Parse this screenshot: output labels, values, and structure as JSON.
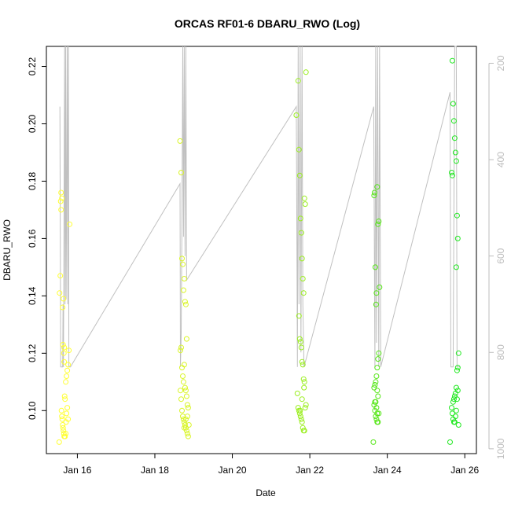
{
  "chart_data": {
    "type": "scatter",
    "title": "ORCAS RF01-6 DBARU_RWO (Log)",
    "xlabel": "Date",
    "ylabel": "DBARU_RWO",
    "x_ticks": [
      "Jan 16",
      "Jan 18",
      "Jan 20",
      "Jan 22",
      "Jan 24",
      "Jan 26"
    ],
    "x_tick_values": [
      16,
      18,
      20,
      22,
      24,
      26
    ],
    "xlim": [
      15.2,
      26.3
    ],
    "ylim": [
      0.085,
      0.227
    ],
    "y_ticks": [
      0.1,
      0.12,
      0.14,
      0.16,
      0.18,
      0.2,
      0.22
    ],
    "y_tick_labels": [
      "0.10",
      "0.12",
      "0.14",
      "0.16",
      "0.18",
      "0.20",
      "0.22"
    ],
    "right_axis": {
      "ticks": [
        200,
        400,
        600,
        800,
        1000
      ],
      "tick_labels": [
        "200",
        "400",
        "600",
        "800",
        "1000"
      ],
      "range_top_to_bottom": [
        165,
        1010
      ],
      "color": "#bdbdbd"
    },
    "grid": false,
    "colors": {
      "line": "#c0c0c0",
      "flight_1": "#ffff33",
      "flight_2": "#d9f526",
      "flight_3": "#9aee1e",
      "flight_4": "#55e616",
      "flight_5": "#1fe81f"
    },
    "pressure_trace": [
      [
        15.55,
        290
      ],
      [
        15.57,
        830
      ],
      [
        15.62,
        830
      ],
      [
        15.63,
        700
      ],
      [
        15.64,
        830
      ],
      [
        15.67,
        165
      ],
      [
        15.68,
        700
      ],
      [
        15.7,
        165
      ],
      [
        15.71,
        690
      ],
      [
        15.74,
        165
      ],
      [
        15.75,
        700
      ],
      [
        15.77,
        165
      ],
      [
        15.78,
        830
      ],
      [
        15.82,
        830
      ],
      [
        18.65,
        450
      ],
      [
        18.66,
        830
      ],
      [
        18.68,
        760
      ],
      [
        18.7,
        500
      ],
      [
        18.72,
        165
      ],
      [
        18.74,
        560
      ],
      [
        18.76,
        165
      ],
      [
        18.78,
        600
      ],
      [
        18.8,
        165
      ],
      [
        18.82,
        650
      ],
      [
        21.65,
        290
      ],
      [
        21.67,
        620
      ],
      [
        21.68,
        830
      ],
      [
        21.7,
        165
      ],
      [
        21.72,
        700
      ],
      [
        21.75,
        165
      ],
      [
        21.77,
        800
      ],
      [
        21.8,
        165
      ],
      [
        21.82,
        700
      ],
      [
        21.85,
        830
      ],
      [
        23.65,
        290
      ],
      [
        23.68,
        830
      ],
      [
        23.7,
        165
      ],
      [
        23.72,
        780
      ],
      [
        23.75,
        165
      ],
      [
        23.78,
        830
      ],
      [
        23.8,
        165
      ],
      [
        23.83,
        830
      ],
      [
        25.62,
        260
      ],
      [
        25.64,
        830
      ],
      [
        25.7,
        830
      ],
      [
        25.74,
        165
      ],
      [
        25.78,
        165
      ],
      [
        25.8,
        830
      ],
      [
        25.86,
        830
      ]
    ],
    "series": [
      {
        "color_key": "flight_1",
        "points": [
          [
            15.53,
            0.089
          ],
          [
            15.54,
            0.141
          ],
          [
            15.56,
            0.147
          ],
          [
            15.58,
            0.176
          ],
          [
            15.6,
            0.174
          ],
          [
            15.62,
            0.136
          ],
          [
            15.63,
            0.123
          ],
          [
            15.64,
            0.139
          ],
          [
            15.65,
            0.12
          ],
          [
            15.66,
            0.117
          ],
          [
            15.67,
            0.105
          ],
          [
            15.68,
            0.104
          ],
          [
            15.7,
            0.11
          ],
          [
            15.72,
            0.112
          ],
          [
            15.74,
            0.114
          ],
          [
            15.76,
            0.116
          ],
          [
            15.78,
            0.121
          ],
          [
            15.8,
            0.165
          ],
          [
            15.59,
            0.1
          ],
          [
            15.6,
            0.098
          ],
          [
            15.61,
            0.097
          ],
          [
            15.62,
            0.095
          ],
          [
            15.63,
            0.094
          ],
          [
            15.64,
            0.093
          ],
          [
            15.65,
            0.092
          ],
          [
            15.66,
            0.091
          ],
          [
            15.68,
            0.091
          ],
          [
            15.7,
            0.092
          ],
          [
            15.71,
            0.096
          ],
          [
            15.72,
            0.099
          ],
          [
            15.74,
            0.101
          ],
          [
            15.76,
            0.097
          ],
          [
            15.57,
            0.173
          ],
          [
            15.58,
            0.17
          ],
          [
            15.66,
            0.122
          ]
        ]
      },
      {
        "color_key": "flight_2",
        "points": [
          [
            18.65,
            0.194
          ],
          [
            18.68,
            0.183
          ],
          [
            18.7,
            0.153
          ],
          [
            18.72,
            0.151
          ],
          [
            18.74,
            0.142
          ],
          [
            18.76,
            0.146
          ],
          [
            18.78,
            0.138
          ],
          [
            18.8,
            0.137
          ],
          [
            18.82,
            0.125
          ],
          [
            18.66,
            0.121
          ],
          [
            18.68,
            0.122
          ],
          [
            18.7,
            0.115
          ],
          [
            18.72,
            0.112
          ],
          [
            18.74,
            0.11
          ],
          [
            18.76,
            0.116
          ],
          [
            18.78,
            0.108
          ],
          [
            18.8,
            0.107
          ],
          [
            18.82,
            0.105
          ],
          [
            18.84,
            0.102
          ],
          [
            18.86,
            0.101
          ],
          [
            18.66,
            0.107
          ],
          [
            18.68,
            0.104
          ],
          [
            18.7,
            0.1
          ],
          [
            18.72,
            0.098
          ],
          [
            18.74,
            0.097
          ],
          [
            18.76,
            0.096
          ],
          [
            18.78,
            0.095
          ],
          [
            18.8,
            0.094
          ],
          [
            18.82,
            0.093
          ],
          [
            18.84,
            0.092
          ],
          [
            18.86,
            0.091
          ],
          [
            18.76,
            0.094
          ],
          [
            18.8,
            0.097
          ],
          [
            18.84,
            0.098
          ],
          [
            18.88,
            0.095
          ]
        ]
      },
      {
        "color_key": "flight_3",
        "points": [
          [
            21.65,
            0.203
          ],
          [
            21.7,
            0.215
          ],
          [
            21.72,
            0.191
          ],
          [
            21.74,
            0.182
          ],
          [
            21.76,
            0.167
          ],
          [
            21.78,
            0.162
          ],
          [
            21.8,
            0.153
          ],
          [
            21.82,
            0.146
          ],
          [
            21.84,
            0.141
          ],
          [
            21.86,
            0.174
          ],
          [
            21.88,
            0.172
          ],
          [
            21.9,
            0.218
          ],
          [
            21.72,
            0.133
          ],
          [
            21.74,
            0.125
          ],
          [
            21.76,
            0.124
          ],
          [
            21.78,
            0.122
          ],
          [
            21.8,
            0.117
          ],
          [
            21.82,
            0.116
          ],
          [
            21.84,
            0.111
          ],
          [
            21.86,
            0.11
          ],
          [
            21.68,
            0.106
          ],
          [
            21.7,
            0.101
          ],
          [
            21.72,
            0.1
          ],
          [
            21.74,
            0.099
          ],
          [
            21.76,
            0.098
          ],
          [
            21.78,
            0.097
          ],
          [
            21.8,
            0.096
          ],
          [
            21.82,
            0.094
          ],
          [
            21.84,
            0.093
          ],
          [
            21.86,
            0.093
          ],
          [
            21.88,
            0.101
          ],
          [
            21.9,
            0.102
          ],
          [
            21.75,
            0.1
          ],
          [
            21.8,
            0.104
          ],
          [
            21.85,
            0.108
          ]
        ]
      },
      {
        "color_key": "flight_4",
        "points": [
          [
            23.64,
            0.089
          ],
          [
            23.66,
            0.175
          ],
          [
            23.67,
            0.176
          ],
          [
            23.69,
            0.15
          ],
          [
            23.71,
            0.137
          ],
          [
            23.72,
            0.141
          ],
          [
            23.74,
            0.178
          ],
          [
            23.76,
            0.165
          ],
          [
            23.78,
            0.166
          ],
          [
            23.8,
            0.143
          ],
          [
            23.78,
            0.12
          ],
          [
            23.76,
            0.118
          ],
          [
            23.74,
            0.115
          ],
          [
            23.72,
            0.112
          ],
          [
            23.7,
            0.11
          ],
          [
            23.68,
            0.109
          ],
          [
            23.66,
            0.108
          ],
          [
            23.74,
            0.107
          ],
          [
            23.76,
            0.105
          ],
          [
            23.66,
            0.102
          ],
          [
            23.68,
            0.1
          ],
          [
            23.7,
            0.098
          ],
          [
            23.72,
            0.097
          ],
          [
            23.74,
            0.096
          ],
          [
            23.76,
            0.096
          ],
          [
            23.78,
            0.099
          ],
          [
            23.68,
            0.103
          ],
          [
            23.7,
            0.103
          ],
          [
            23.72,
            0.101
          ],
          [
            23.74,
            0.099
          ]
        ]
      },
      {
        "color_key": "flight_5",
        "points": [
          [
            25.68,
            0.222
          ],
          [
            25.7,
            0.207
          ],
          [
            25.72,
            0.201
          ],
          [
            25.74,
            0.195
          ],
          [
            25.76,
            0.19
          ],
          [
            25.78,
            0.187
          ],
          [
            25.66,
            0.183
          ],
          [
            25.68,
            0.182
          ],
          [
            25.8,
            0.168
          ],
          [
            25.82,
            0.16
          ],
          [
            25.78,
            0.15
          ],
          [
            25.84,
            0.12
          ],
          [
            25.82,
            0.115
          ],
          [
            25.8,
            0.114
          ],
          [
            25.78,
            0.108
          ],
          [
            25.76,
            0.106
          ],
          [
            25.74,
            0.105
          ],
          [
            25.72,
            0.104
          ],
          [
            25.7,
            0.103
          ],
          [
            25.66,
            0.101
          ],
          [
            25.68,
            0.099
          ],
          [
            25.7,
            0.097
          ],
          [
            25.72,
            0.096
          ],
          [
            25.74,
            0.096
          ],
          [
            25.76,
            0.098
          ],
          [
            25.78,
            0.1
          ],
          [
            25.62,
            0.089
          ],
          [
            25.8,
            0.104
          ],
          [
            25.82,
            0.107
          ],
          [
            25.84,
            0.095
          ]
        ]
      }
    ]
  }
}
